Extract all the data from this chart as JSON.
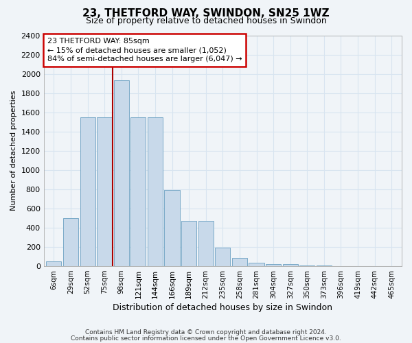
{
  "title_line1": "23, THETFORD WAY, SWINDON, SN25 1WZ",
  "title_line2": "Size of property relative to detached houses in Swindon",
  "xlabel": "Distribution of detached houses by size in Swindon",
  "ylabel": "Number of detached properties",
  "footer_line1": "Contains HM Land Registry data © Crown copyright and database right 2024.",
  "footer_line2": "Contains public sector information licensed under the Open Government Licence v3.0.",
  "bar_labels": [
    "6sqm",
    "29sqm",
    "52sqm",
    "75sqm",
    "98sqm",
    "121sqm",
    "144sqm",
    "166sqm",
    "189sqm",
    "212sqm",
    "235sqm",
    "258sqm",
    "281sqm",
    "304sqm",
    "327sqm",
    "350sqm",
    "373sqm",
    "396sqm",
    "419sqm",
    "442sqm",
    "465sqm"
  ],
  "bar_values": [
    50,
    500,
    1550,
    1550,
    1930,
    1550,
    1550,
    790,
    470,
    470,
    190,
    85,
    35,
    25,
    20,
    5,
    5,
    0,
    0,
    0,
    0
  ],
  "bar_color": "#c8d9ea",
  "bar_edge_color": "#7aaac8",
  "grid_color": "#d8e4f0",
  "vline_color": "#aa0000",
  "annotation_text": "23 THETFORD WAY: 85sqm\n← 15% of detached houses are smaller (1,052)\n84% of semi-detached houses are larger (6,047) →",
  "annotation_box_color": "#ffffff",
  "annotation_box_edge": "#cc0000",
  "ylim": [
    0,
    2400
  ],
  "yticks": [
    0,
    200,
    400,
    600,
    800,
    1000,
    1200,
    1400,
    1600,
    1800,
    2000,
    2200,
    2400
  ],
  "background_color": "#f0f4f8",
  "vline_pos": 3.5
}
